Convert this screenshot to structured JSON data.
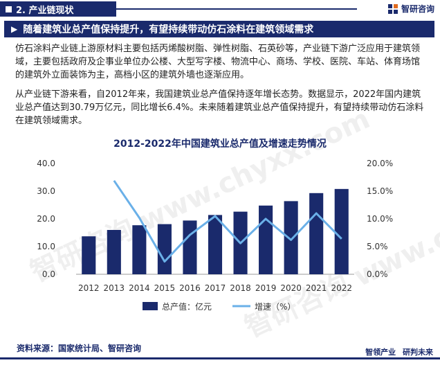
{
  "header": {
    "section_label": "2. 产业链现状",
    "brand_name": "智研咨询"
  },
  "headline": "随着建筑业总产值保持提升，有望持续带动仿石涂料在建筑领域需求",
  "paragraphs": [
    "仿石涂料产业链上游原材料主要包括丙烯酸树脂、弹性树脂、石英砂等，产业链下游广泛应用于建筑领域，主要包括政府及企事业单位办公楼、大型写字楼、物流中心、商场、学校、医院、车站、体育场馆的建筑外立面装饰为主，高档小区的建筑外墙也逐渐应用。",
    "从产业链下游来看，自2012年来，我国建筑业总产值保持逐年增长态势。数据显示，2022年国内建筑业总产值达到30.79万亿元，同比增长6.4%。未来随着建筑业总产值保持提升，有望持续带动仿石涂料在建筑领域需求。"
  ],
  "watermark_text": "智研咨询 www.chyxx.com",
  "chart_data": {
    "type": "bar",
    "title": "2012-2022年中国建筑业总产值及增速走势情况",
    "categories": [
      "2012",
      "2013",
      "2014",
      "2015",
      "2016",
      "2017",
      "2018",
      "2019",
      "2020",
      "2021",
      "2022"
    ],
    "series": [
      {
        "name": "总产值：亿元",
        "type": "bar",
        "axis": "left",
        "color": "#1a2a6c",
        "values": [
          13.7,
          16.0,
          17.7,
          18.1,
          19.4,
          21.4,
          22.6,
          24.8,
          26.4,
          29.3,
          30.79
        ]
      },
      {
        "name": "增速（%）",
        "type": "line",
        "axis": "right",
        "color": "#6ab0e8",
        "values": [
          null,
          16.9,
          10.2,
          2.3,
          7.1,
          10.5,
          5.6,
          10.0,
          6.2,
          11.0,
          6.4
        ]
      }
    ],
    "y_left": {
      "min": 0,
      "max": 40,
      "ticks": [
        "0.0",
        "10.0",
        "20.0",
        "30.0",
        "40.0"
      ]
    },
    "y_right": {
      "min": 0,
      "max": 20,
      "ticks": [
        "0.0%",
        "5.0%",
        "10.0%",
        "15.0%",
        "20.0%"
      ]
    },
    "grid": false,
    "legend_position": "bottom"
  },
  "source_text": "资料来源：国家统计局、智研咨询",
  "footer": {
    "left": "智领产业",
    "right": "研判未来"
  }
}
